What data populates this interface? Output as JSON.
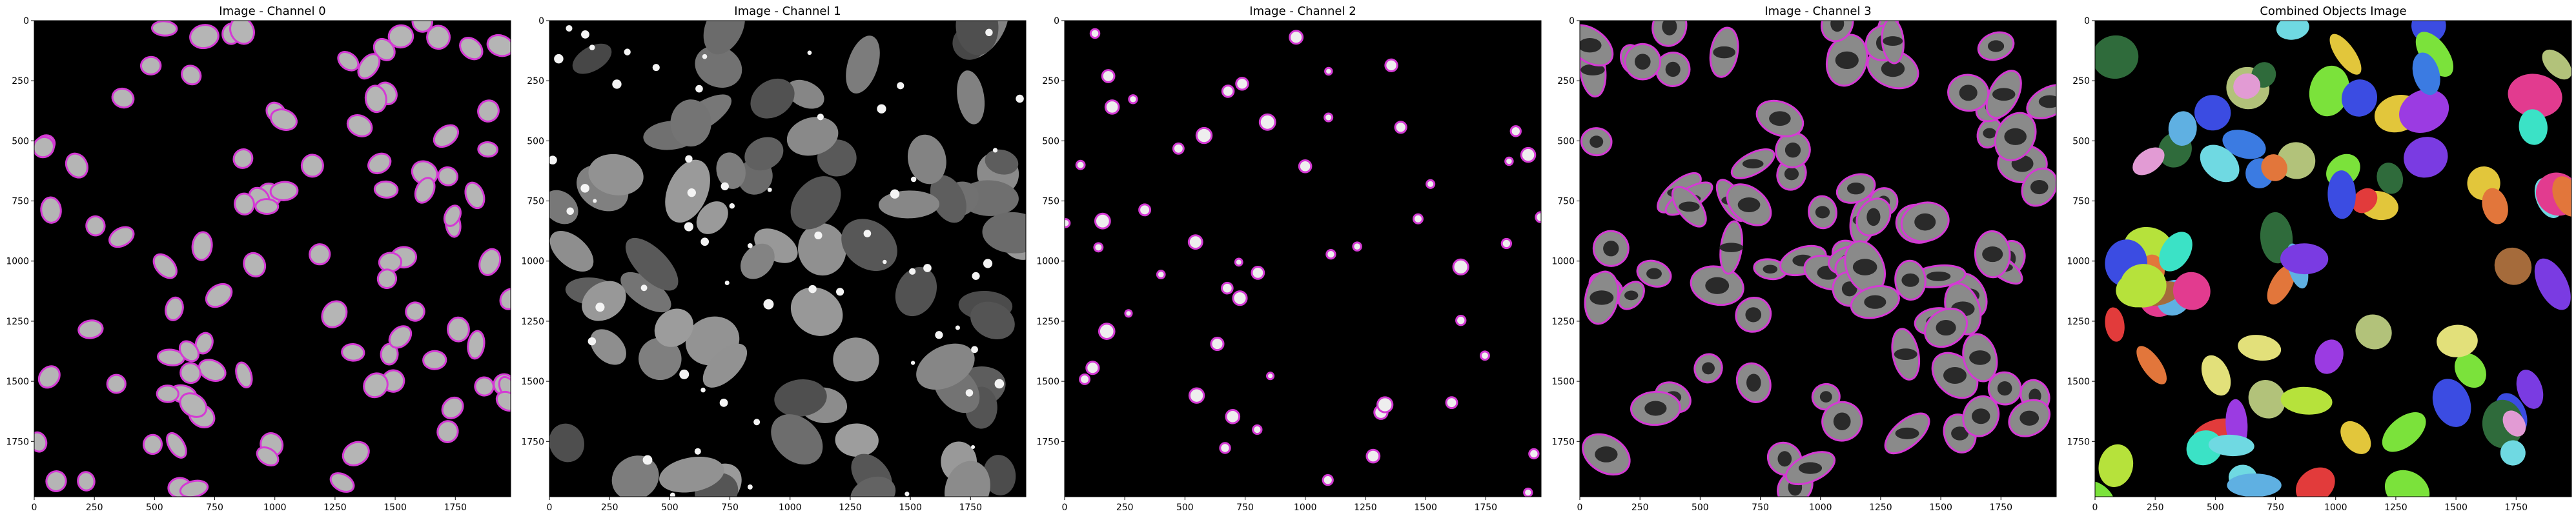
{
  "figure": {
    "panels": [
      {
        "id": "channel0",
        "title": "Image - Channel 0",
        "x_ticks": [
          "0",
          "250",
          "500",
          "750",
          "1000",
          "1250",
          "1500",
          "1750"
        ],
        "y_ticks": [
          "0",
          "250",
          "500",
          "750",
          "1000",
          "1250",
          "1500",
          "1750"
        ],
        "show_y_ticks": true
      },
      {
        "id": "channel1",
        "title": "Image - Channel 1",
        "x_ticks": [
          "0",
          "250",
          "500",
          "750",
          "1000",
          "1250",
          "1500",
          "1750"
        ],
        "y_ticks": [
          "0",
          "250",
          "500",
          "750",
          "1000",
          "1250",
          "1500",
          "1750"
        ],
        "show_y_ticks": true
      },
      {
        "id": "channel2",
        "title": "Image - Channel 2",
        "x_ticks": [
          "0",
          "250",
          "500",
          "750",
          "1000",
          "1250",
          "1500",
          "1750"
        ],
        "y_ticks": [
          "0",
          "250",
          "500",
          "750",
          "1000",
          "1250",
          "1500",
          "1750"
        ],
        "show_y_ticks": true
      },
      {
        "id": "channel3",
        "title": "Image - Channel 3",
        "x_ticks": [
          "0",
          "250",
          "500",
          "750",
          "1000",
          "1250",
          "1500",
          "1750"
        ],
        "y_ticks": [
          "0",
          "250",
          "500",
          "750",
          "1000",
          "1250",
          "1500",
          "1750"
        ],
        "show_y_ticks": true
      },
      {
        "id": "combined",
        "title": "Combined Objects Image",
        "x_ticks": [
          "0",
          "250",
          "500",
          "750",
          "1000",
          "1250",
          "1500",
          "1750"
        ],
        "y_ticks": [
          "0",
          "250",
          "500",
          "750",
          "1000",
          "1250",
          "1500",
          "1750"
        ],
        "show_y_ticks": true
      }
    ],
    "outline_color": "#d43ad4",
    "background_color": "#000000"
  }
}
